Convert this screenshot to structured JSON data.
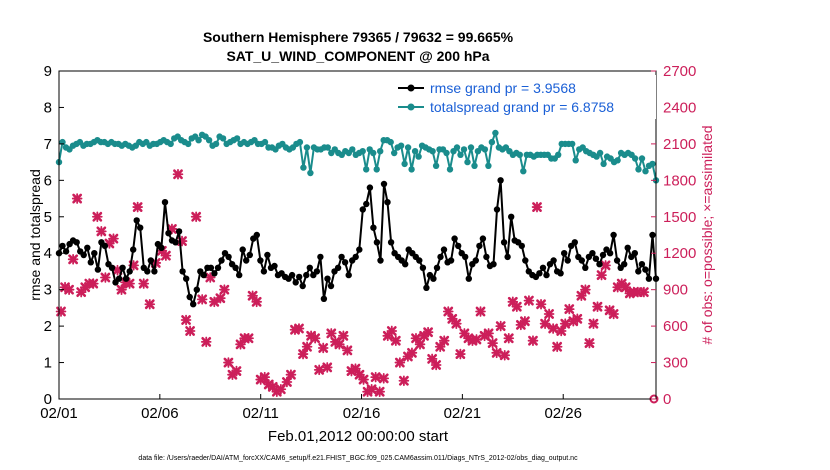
{
  "chart_data": {
    "type": "line",
    "title": "Southern Hemisphere 79365 / 79632 = 99.665%",
    "subtitle": "SAT_U_WIND_COMPONENT @ 200 hPa",
    "xlabel": "Feb.01,2012 00:00:00 start",
    "ylabel": "rmse and totalspread",
    "ylabel_right": "# of obs: o=possible; ×=assimilated",
    "xlim": [
      0,
      29.6
    ],
    "ylim": [
      0,
      9
    ],
    "ylim_right": [
      0,
      2700
    ],
    "x_ticks": [
      {
        "d": 0,
        "label": "02/01"
      },
      {
        "d": 5,
        "label": "02/06"
      },
      {
        "d": 10,
        "label": "02/11"
      },
      {
        "d": 15,
        "label": "02/16"
      },
      {
        "d": 20,
        "label": "02/21"
      },
      {
        "d": 25,
        "label": "02/26"
      }
    ],
    "y_ticks": [
      "0",
      "1",
      "2",
      "3",
      "4",
      "5",
      "6",
      "7",
      "8",
      "9"
    ],
    "y_ticks_right": [
      "0",
      "300",
      "600",
      "900",
      "1200",
      "1500",
      "1800",
      "2100",
      "2400",
      "2700"
    ],
    "legend_position": "top-right",
    "grid": false,
    "series": [
      {
        "name": "rmse grand pr = 3.9568",
        "color": "#000000",
        "axis": "left",
        "values": [
          4.0,
          4.2,
          4.05,
          4.25,
          4.35,
          4.3,
          4.05,
          3.95,
          4.15,
          3.75,
          4.0,
          3.55,
          4.3,
          4.2,
          3.7,
          3.6,
          3.2,
          3.3,
          3.6,
          3.3,
          3.5,
          4.1,
          4.9,
          4.7,
          3.6,
          3.5,
          3.8,
          3.5,
          4.25,
          4.15,
          5.4,
          4.55,
          4.35,
          4.3,
          4.6,
          3.5,
          3.3,
          2.8,
          2.6,
          3.0,
          3.5,
          3.4,
          3.6,
          3.6,
          3.45,
          3.6,
          3.8,
          4.0,
          3.9,
          3.7,
          3.6,
          3.4,
          4.1,
          3.8,
          3.95,
          4.4,
          4.5,
          3.8,
          3.5,
          3.95,
          3.6,
          3.65,
          3.4,
          3.45,
          3.35,
          3.3,
          3.4,
          3.2,
          3.35,
          3.1,
          3.4,
          3.6,
          3.4,
          3.5,
          3.9,
          2.75,
          3.3,
          3.1,
          3.5,
          3.6,
          3.9,
          3.75,
          3.4,
          3.8,
          3.9,
          4.1,
          5.2,
          5.35,
          5.8,
          4.7,
          4.3,
          3.8,
          5.9,
          5.4,
          4.3,
          4.0,
          3.9,
          3.8,
          3.7,
          4.1,
          4.0,
          3.9,
          3.8,
          3.6,
          3.05,
          3.4,
          3.3,
          3.6,
          3.9,
          4.1,
          3.75,
          3.8,
          4.4,
          4.2,
          4.0,
          3.9,
          3.3,
          3.7,
          3.8,
          4.2,
          4.4,
          3.9,
          3.65,
          3.7,
          5.2,
          6.0,
          4.3,
          3.9,
          5.0,
          4.35,
          4.3,
          4.2,
          3.8,
          3.5,
          3.4,
          3.35,
          3.45,
          3.6,
          3.4,
          3.7,
          3.8,
          3.5,
          3.45,
          4.0,
          3.8,
          4.2,
          4.3,
          3.9,
          3.8,
          3.6,
          3.9,
          4.0,
          3.85,
          3.7,
          3.95,
          4.1,
          4.0,
          4.5,
          3.8,
          3.6,
          3.7,
          4.15,
          3.9,
          4.0,
          3.5,
          3.7,
          3.55,
          3.3,
          4.5,
          3.3
        ],
        "note": "values are evenly spaced from 02/01 to the right end of the axis"
      },
      {
        "name": "totalspread grand pr = 6.8758",
        "color": "#1a8c8c",
        "axis": "left",
        "values": [
          6.5,
          7.05,
          6.9,
          6.85,
          6.95,
          7.0,
          7.05,
          6.95,
          7.0,
          7.0,
          7.05,
          7.1,
          7.05,
          7.05,
          7.0,
          7.05,
          7.0,
          7.0,
          6.95,
          7.0,
          6.95,
          6.9,
          6.95,
          7.05,
          7.0,
          7.05,
          6.95,
          7.0,
          7.0,
          7.05,
          7.1,
          7.05,
          7.0,
          7.15,
          7.2,
          7.1,
          7.05,
          7.0,
          7.15,
          7.2,
          7.1,
          7.25,
          7.2,
          7.1,
          6.95,
          7.0,
          7.2,
          7.15,
          7.0,
          7.05,
          7.1,
          7.15,
          7.0,
          7.05,
          7.0,
          7.05,
          7.1,
          7.0,
          7.0,
          7.05,
          6.9,
          6.9,
          6.85,
          6.95,
          7.0,
          6.9,
          6.85,
          6.9,
          7.0,
          7.05,
          6.35,
          6.9,
          6.2,
          6.9,
          6.85,
          6.85,
          6.9,
          6.9,
          6.75,
          6.85,
          6.75,
          6.7,
          6.8,
          6.75,
          6.85,
          6.7,
          6.75,
          6.8,
          6.3,
          6.85,
          6.75,
          6.3,
          6.8,
          7.1,
          7.1,
          7.05,
          6.75,
          6.9,
          6.95,
          6.45,
          6.9,
          6.3,
          6.8,
          6.65,
          6.95,
          6.9,
          6.85,
          6.8,
          6.4,
          6.85,
          6.85,
          6.75,
          6.3,
          6.8,
          6.9,
          6.7,
          6.85,
          6.5,
          6.9,
          6.4,
          6.8,
          6.9,
          6.85,
          6.4,
          7.05,
          7.3,
          6.9,
          6.85,
          6.9,
          6.8,
          6.7,
          6.75,
          6.7,
          6.25,
          6.7,
          6.7,
          6.65,
          6.7,
          6.7,
          6.7,
          6.7,
          6.6,
          6.6,
          6.7,
          7.0,
          7.0,
          7.0,
          7.0,
          6.55,
          6.85,
          6.9,
          6.8,
          6.75,
          6.7,
          6.65,
          6.75,
          6.45,
          6.65,
          6.6,
          6.5,
          6.55,
          6.75,
          6.7,
          6.75,
          6.7,
          6.6,
          6.3,
          6.6,
          6.25,
          6.4,
          6.45,
          6.0
        ],
        "note": "values are evenly spaced from 02/01 to the right end of the axis"
      }
    ],
    "obs_assimilated": {
      "axis": "right",
      "color": "#cc1f5a",
      "marker": "×",
      "points": [
        {
          "d": 0.1,
          "y": 720
        },
        {
          "d": 0.3,
          "y": 920
        },
        {
          "d": 0.5,
          "y": 900
        },
        {
          "d": 0.7,
          "y": 1150
        },
        {
          "d": 0.9,
          "y": 1650
        },
        {
          "d": 1.1,
          "y": 880
        },
        {
          "d": 1.3,
          "y": 920
        },
        {
          "d": 1.5,
          "y": 950
        },
        {
          "d": 1.7,
          "y": 950
        },
        {
          "d": 1.9,
          "y": 1500
        },
        {
          "d": 2.1,
          "y": 1380
        },
        {
          "d": 2.3,
          "y": 1000
        },
        {
          "d": 2.5,
          "y": 1280
        },
        {
          "d": 2.7,
          "y": 1320
        },
        {
          "d": 2.9,
          "y": 1060
        },
        {
          "d": 3.1,
          "y": 900
        },
        {
          "d": 3.3,
          "y": 960
        },
        {
          "d": 3.5,
          "y": 950
        },
        {
          "d": 3.7,
          "y": 1100
        },
        {
          "d": 3.9,
          "y": 1580
        },
        {
          "d": 4.2,
          "y": 950
        },
        {
          "d": 4.5,
          "y": 780
        },
        {
          "d": 4.8,
          "y": 1120
        },
        {
          "d": 5.1,
          "y": 1220
        },
        {
          "d": 5.3,
          "y": 1180
        },
        {
          "d": 5.6,
          "y": 1400
        },
        {
          "d": 5.9,
          "y": 1850
        },
        {
          "d": 6.1,
          "y": 1300
        },
        {
          "d": 6.3,
          "y": 650
        },
        {
          "d": 6.5,
          "y": 560
        },
        {
          "d": 6.8,
          "y": 1500
        },
        {
          "d": 7.1,
          "y": 820
        },
        {
          "d": 7.3,
          "y": 470
        },
        {
          "d": 7.5,
          "y": 1000
        },
        {
          "d": 7.7,
          "y": 800
        },
        {
          "d": 8.0,
          "y": 830
        },
        {
          "d": 8.2,
          "y": 900
        },
        {
          "d": 8.4,
          "y": 300
        },
        {
          "d": 8.6,
          "y": 200
        },
        {
          "d": 8.8,
          "y": 230
        },
        {
          "d": 9.0,
          "y": 450
        },
        {
          "d": 9.2,
          "y": 500
        },
        {
          "d": 9.4,
          "y": 500
        },
        {
          "d": 9.6,
          "y": 850
        },
        {
          "d": 9.8,
          "y": 800
        },
        {
          "d": 10.0,
          "y": 160
        },
        {
          "d": 10.2,
          "y": 180
        },
        {
          "d": 10.4,
          "y": 120
        },
        {
          "d": 10.6,
          "y": 100
        },
        {
          "d": 10.8,
          "y": 60
        },
        {
          "d": 11.0,
          "y": 80
        },
        {
          "d": 11.3,
          "y": 140
        },
        {
          "d": 11.5,
          "y": 200
        },
        {
          "d": 11.7,
          "y": 570
        },
        {
          "d": 11.9,
          "y": 580
        },
        {
          "d": 12.1,
          "y": 370
        },
        {
          "d": 12.3,
          "y": 430
        },
        {
          "d": 12.5,
          "y": 520
        },
        {
          "d": 12.7,
          "y": 500
        },
        {
          "d": 12.9,
          "y": 240
        },
        {
          "d": 13.1,
          "y": 420
        },
        {
          "d": 13.3,
          "y": 260
        },
        {
          "d": 13.5,
          "y": 540
        },
        {
          "d": 13.7,
          "y": 470
        },
        {
          "d": 13.9,
          "y": 450
        },
        {
          "d": 14.1,
          "y": 520
        },
        {
          "d": 14.3,
          "y": 400
        },
        {
          "d": 14.5,
          "y": 230
        },
        {
          "d": 14.7,
          "y": 250
        },
        {
          "d": 14.9,
          "y": 200
        },
        {
          "d": 15.1,
          "y": 160
        },
        {
          "d": 15.3,
          "y": 60
        },
        {
          "d": 15.5,
          "y": 80
        },
        {
          "d": 15.7,
          "y": 180
        },
        {
          "d": 15.9,
          "y": 60
        },
        {
          "d": 16.1,
          "y": 170
        },
        {
          "d": 16.3,
          "y": 520
        },
        {
          "d": 16.5,
          "y": 560
        },
        {
          "d": 16.7,
          "y": 480
        },
        {
          "d": 16.9,
          "y": 300
        },
        {
          "d": 17.1,
          "y": 150
        },
        {
          "d": 17.3,
          "y": 350
        },
        {
          "d": 17.5,
          "y": 380
        },
        {
          "d": 17.7,
          "y": 500
        },
        {
          "d": 17.9,
          "y": 450
        },
        {
          "d": 18.1,
          "y": 520
        },
        {
          "d": 18.3,
          "y": 550
        },
        {
          "d": 18.5,
          "y": 330
        },
        {
          "d": 18.7,
          "y": 280
        },
        {
          "d": 18.9,
          "y": 430
        },
        {
          "d": 19.1,
          "y": 480
        },
        {
          "d": 19.3,
          "y": 720
        },
        {
          "d": 19.5,
          "y": 660
        },
        {
          "d": 19.7,
          "y": 620
        },
        {
          "d": 19.9,
          "y": 370
        },
        {
          "d": 20.1,
          "y": 540
        },
        {
          "d": 20.3,
          "y": 500
        },
        {
          "d": 20.5,
          "y": 480
        },
        {
          "d": 20.7,
          "y": 490
        },
        {
          "d": 20.9,
          "y": 720
        },
        {
          "d": 21.1,
          "y": 520
        },
        {
          "d": 21.3,
          "y": 540
        },
        {
          "d": 21.5,
          "y": 460
        },
        {
          "d": 21.7,
          "y": 380
        },
        {
          "d": 21.9,
          "y": 600
        },
        {
          "d": 22.1,
          "y": 360
        },
        {
          "d": 22.3,
          "y": 500
        },
        {
          "d": 22.5,
          "y": 800
        },
        {
          "d": 22.7,
          "y": 760
        },
        {
          "d": 22.9,
          "y": 610
        },
        {
          "d": 23.1,
          "y": 640
        },
        {
          "d": 23.3,
          "y": 810
        },
        {
          "d": 23.5,
          "y": 480
        },
        {
          "d": 23.7,
          "y": 1580
        },
        {
          "d": 23.9,
          "y": 780
        },
        {
          "d": 24.1,
          "y": 620
        },
        {
          "d": 24.3,
          "y": 700
        },
        {
          "d": 24.5,
          "y": 580
        },
        {
          "d": 24.7,
          "y": 430
        },
        {
          "d": 24.9,
          "y": 560
        },
        {
          "d": 25.1,
          "y": 620
        },
        {
          "d": 25.3,
          "y": 740
        },
        {
          "d": 25.5,
          "y": 640
        },
        {
          "d": 25.7,
          "y": 660
        },
        {
          "d": 25.9,
          "y": 850
        },
        {
          "d": 26.1,
          "y": 900
        },
        {
          "d": 26.3,
          "y": 460
        },
        {
          "d": 26.5,
          "y": 620
        },
        {
          "d": 26.7,
          "y": 760
        },
        {
          "d": 26.9,
          "y": 1020
        },
        {
          "d": 27.1,
          "y": 1100
        },
        {
          "d": 27.3,
          "y": 730
        },
        {
          "d": 27.5,
          "y": 700
        },
        {
          "d": 27.7,
          "y": 920
        },
        {
          "d": 27.9,
          "y": 950
        },
        {
          "d": 28.1,
          "y": 920
        },
        {
          "d": 28.3,
          "y": 870
        },
        {
          "d": 28.5,
          "y": 880
        },
        {
          "d": 28.7,
          "y": 880
        },
        {
          "d": 29.0,
          "y": 880
        }
      ]
    },
    "obs_possible_final": {
      "d": 29.5,
      "y": 0
    }
  },
  "footer": "data file: /Users/raeder/DAI/ATM_forcXX/CAM6_setup/f.e21.FHIST_BGC.f09_025.CAM6assim.011/Diags_NTrS_2012-02/obs_diag_output.nc"
}
